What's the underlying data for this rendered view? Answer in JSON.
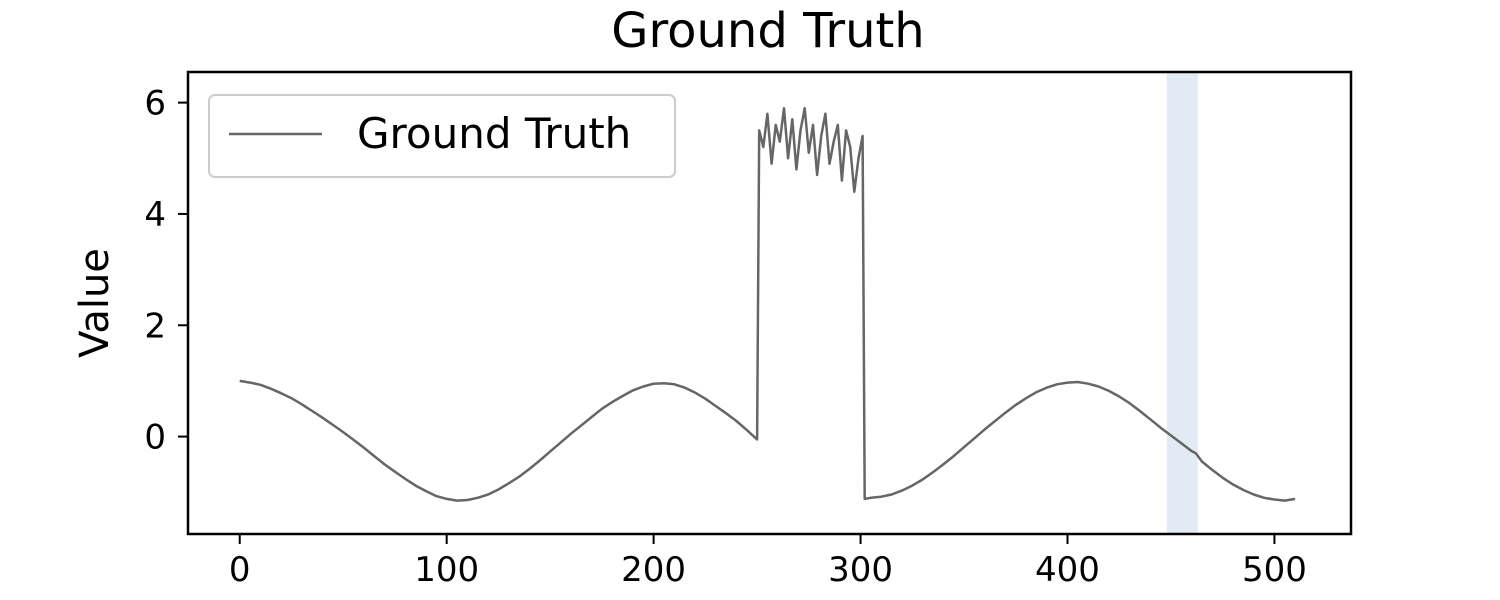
{
  "chart_data": {
    "type": "line",
    "title": "Ground Truth",
    "xlabel": "",
    "ylabel": "Value",
    "xlim": [
      -25,
      537
    ],
    "ylim": [
      -1.75,
      6.55
    ],
    "x_ticks": [
      0,
      100,
      200,
      300,
      400,
      500
    ],
    "y_ticks": [
      0,
      2,
      4,
      6
    ],
    "grid": false,
    "legend_position": "upper-left",
    "highlight_band": {
      "x_start": 448,
      "x_end": 463,
      "color": "#dbe6f1"
    },
    "series": [
      {
        "name": "Ground Truth",
        "color": "#666666",
        "x": [
          0,
          5,
          10,
          15,
          20,
          25,
          30,
          35,
          40,
          45,
          50,
          55,
          60,
          65,
          70,
          75,
          80,
          85,
          90,
          95,
          100,
          105,
          110,
          115,
          120,
          125,
          130,
          135,
          140,
          145,
          150,
          155,
          160,
          165,
          170,
          175,
          180,
          185,
          190,
          195,
          200,
          205,
          210,
          215,
          220,
          225,
          230,
          235,
          240,
          245,
          250,
          251,
          253,
          255,
          257,
          259,
          261,
          263,
          265,
          267,
          269,
          271,
          273,
          275,
          277,
          279,
          281,
          283,
          285,
          287,
          289,
          291,
          293,
          295,
          297,
          299,
          301,
          302,
          305,
          310,
          315,
          320,
          325,
          330,
          335,
          340,
          345,
          350,
          355,
          360,
          365,
          370,
          375,
          380,
          385,
          390,
          395,
          400,
          405,
          410,
          415,
          420,
          425,
          430,
          435,
          440,
          445,
          450,
          455,
          460,
          462,
          465,
          470,
          475,
          480,
          485,
          490,
          495,
          500,
          505,
          510
        ],
        "y": [
          1.0,
          0.97,
          0.93,
          0.86,
          0.78,
          0.69,
          0.58,
          0.46,
          0.34,
          0.21,
          0.08,
          -0.06,
          -0.2,
          -0.35,
          -0.5,
          -0.63,
          -0.76,
          -0.88,
          -0.98,
          -1.07,
          -1.12,
          -1.15,
          -1.14,
          -1.1,
          -1.04,
          -0.95,
          -0.84,
          -0.72,
          -0.58,
          -0.43,
          -0.27,
          -0.11,
          0.05,
          0.2,
          0.35,
          0.5,
          0.62,
          0.73,
          0.83,
          0.9,
          0.95,
          0.96,
          0.94,
          0.88,
          0.79,
          0.68,
          0.55,
          0.42,
          0.28,
          0.12,
          -0.05,
          5.5,
          5.2,
          5.8,
          4.9,
          5.6,
          5.3,
          5.9,
          5.0,
          5.7,
          4.8,
          5.5,
          5.9,
          5.1,
          5.6,
          4.7,
          5.4,
          5.8,
          4.9,
          5.3,
          5.6,
          4.6,
          5.5,
          5.2,
          4.4,
          5.0,
          5.4,
          -1.12,
          -1.1,
          -1.08,
          -1.04,
          -0.97,
          -0.88,
          -0.77,
          -0.64,
          -0.5,
          -0.35,
          -0.19,
          -0.03,
          0.13,
          0.28,
          0.43,
          0.57,
          0.69,
          0.8,
          0.88,
          0.94,
          0.97,
          0.98,
          0.95,
          0.9,
          0.82,
          0.72,
          0.6,
          0.46,
          0.31,
          0.16,
          0.02,
          -0.12,
          -0.26,
          -0.3,
          -0.45,
          -0.6,
          -0.74,
          -0.86,
          -0.96,
          -1.04,
          -1.1,
          -1.13,
          -1.15,
          -1.12
        ]
      }
    ]
  }
}
